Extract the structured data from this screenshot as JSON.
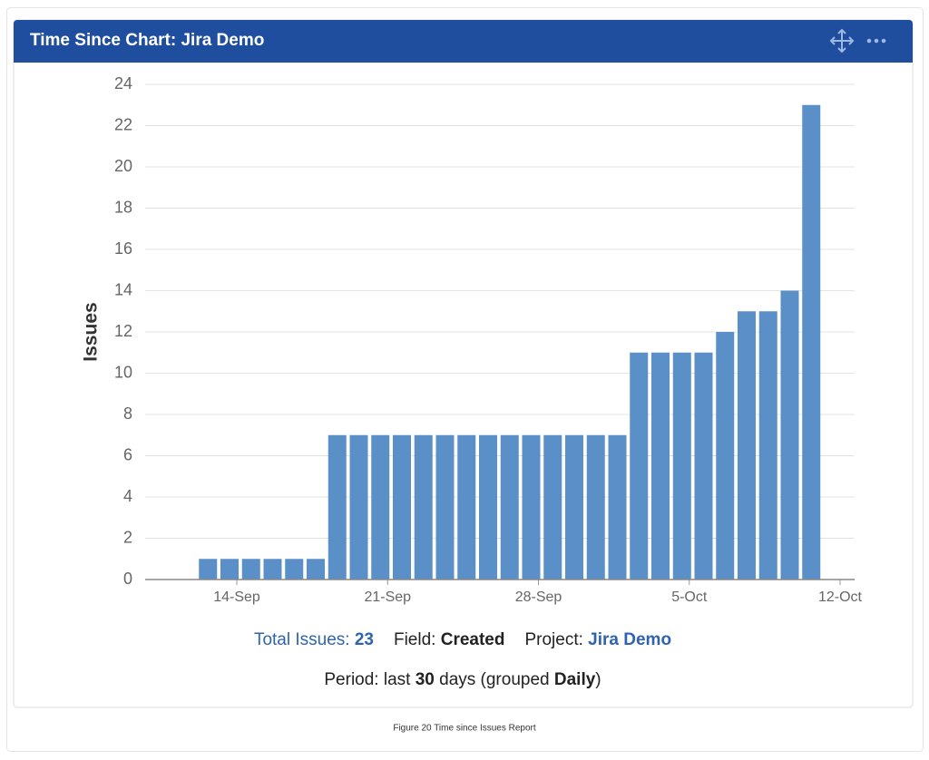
{
  "header": {
    "title": "Time Since Chart: Jira Demo"
  },
  "chart_data": {
    "type": "bar",
    "y_label": "Issues",
    "categories": [
      null,
      null,
      null,
      null,
      "14-Sep",
      null,
      null,
      null,
      null,
      null,
      null,
      "21-Sep",
      null,
      null,
      null,
      null,
      null,
      null,
      "28-Sep",
      null,
      null,
      null,
      null,
      null,
      null,
      "5-Oct",
      null,
      null,
      null,
      null,
      null,
      null,
      "12-Oct"
    ],
    "values": [
      null,
      null,
      null,
      1,
      1,
      1,
      1,
      1,
      1,
      7,
      7,
      7,
      7,
      7,
      7,
      7,
      7,
      7,
      7,
      7,
      7,
      7,
      7,
      11,
      11,
      11,
      11,
      12,
      13,
      13,
      14,
      23,
      null
    ],
    "color": "#5b8fc7",
    "ylim": [
      0,
      24
    ],
    "yticks": [
      0,
      2,
      4,
      6,
      8,
      10,
      12,
      14,
      16,
      18,
      20,
      22,
      24
    ],
    "grid": true
  },
  "footer": {
    "total_label": "Total Issues: ",
    "total_value": "23",
    "field_label": "Field: ",
    "field_value": "Created",
    "project_label": "Project: ",
    "project_value": "Jira Demo",
    "period_prefix": "Period: last ",
    "period_days": "30",
    "period_mid": " days (grouped ",
    "period_group": "Daily",
    "period_suffix": ")"
  },
  "caption": "Figure 20 Time since Issues Report"
}
